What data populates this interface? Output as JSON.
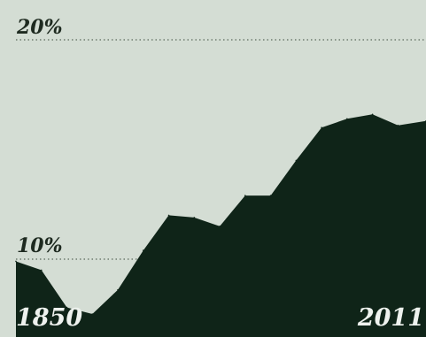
{
  "chart_data": {
    "type": "area",
    "x": [
      1850,
      1860,
      1870,
      1880,
      1890,
      1900,
      1910,
      1920,
      1930,
      1940,
      1950,
      1960,
      1970,
      1980,
      1990,
      2000,
      2011
    ],
    "values": [
      9.9,
      9.5,
      7.8,
      7.5,
      8.6,
      10.4,
      12.0,
      11.9,
      11.5,
      12.9,
      12.9,
      14.5,
      16.0,
      16.4,
      16.6,
      16.1,
      16.3
    ],
    "xlim": [
      1850,
      2011
    ],
    "ylim": [
      0,
      20
    ],
    "y_tick_labels": [
      "20%",
      "10%"
    ],
    "x_labels": [
      "1850",
      "2011"
    ],
    "gridlines": "dotted at 10% and 20%",
    "colors": {
      "background": "#d4ddd4",
      "area_fill": "#0f2418",
      "gridline": "#5a6a5c",
      "label_dark": "#1e2a20",
      "label_light": "#eef2ee"
    }
  }
}
